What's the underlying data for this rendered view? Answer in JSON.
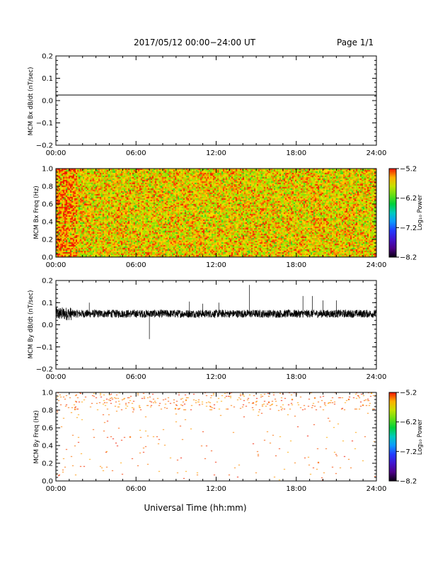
{
  "header": {
    "title": "2017/05/12  00:00−24:00 UT",
    "page": "Page 1/1"
  },
  "xlabel": "Universal Time (hh:mm)",
  "colorbar_label": "Log₁₀ Power",
  "chart_data": [
    {
      "type": "line",
      "ylabel": "MCM Bx dB/dt (nT/sec)",
      "xlim": [
        0,
        24
      ],
      "ylim": [
        -0.2,
        0.2
      ],
      "x_ticks": [
        "00:00",
        "06:00",
        "12:00",
        "18:00",
        "24:00"
      ],
      "y_ticks": [
        "0.2",
        "0.1",
        "0.0",
        "−0.1",
        "−0.2"
      ],
      "series": [
        {
          "x": [
            0,
            24
          ],
          "y": [
            0.025,
            0.025
          ]
        }
      ]
    },
    {
      "type": "heatmap",
      "ylabel": "MCM Bx Freq (Hz)",
      "xlim": [
        0,
        24
      ],
      "ylim": [
        0,
        1.0
      ],
      "x_ticks": [
        "00:00",
        "06:00",
        "12:00",
        "18:00",
        "24:00"
      ],
      "y_ticks": [
        "1.0",
        "0.8",
        "0.6",
        "0.4",
        "0.2",
        "0.0"
      ],
      "colorbar": {
        "min": -8.2,
        "max": -5.2,
        "ticks": [
          "−5.2",
          "−6.2",
          "−7.2",
          "−8.2"
        ]
      },
      "description": "dense noise, log10 power approx -6.3 to -5.2 across all times and frequencies"
    },
    {
      "type": "line",
      "ylabel": "MCM By dB/dt (nT/sec)",
      "xlim": [
        0,
        24
      ],
      "ylim": [
        -0.2,
        0.2
      ],
      "x_ticks": [
        "00:00",
        "06:00",
        "12:00",
        "18:00",
        "24:00"
      ],
      "y_ticks": [
        "0.2",
        "0.1",
        "0.0",
        "−0.1",
        "−0.2"
      ],
      "baseline": 0.05,
      "spikes": [
        {
          "x": 7.0,
          "y": -0.065
        },
        {
          "x": 14.5,
          "y": 0.18
        },
        {
          "x": 2.5,
          "y": 0.1
        },
        {
          "x": 10.0,
          "y": 0.105
        },
        {
          "x": 11.0,
          "y": 0.095
        },
        {
          "x": 12.2,
          "y": 0.1
        },
        {
          "x": 18.5,
          "y": 0.13
        },
        {
          "x": 19.2,
          "y": 0.13
        },
        {
          "x": 20.0,
          "y": 0.11
        },
        {
          "x": 21.0,
          "y": 0.11
        }
      ]
    },
    {
      "type": "heatmap",
      "ylabel": "MCM By Freq (Hz)",
      "xlim": [
        0,
        24
      ],
      "ylim": [
        0,
        1.0
      ],
      "x_ticks": [
        "00:00",
        "06:00",
        "12:00",
        "18:00",
        "24:00"
      ],
      "y_ticks": [
        "1.0",
        "0.8",
        "0.6",
        "0.4",
        "0.2",
        "0.0"
      ],
      "colorbar": {
        "min": -8.2,
        "max": -5.2,
        "ticks": [
          "−5.2",
          "−6.2",
          "−7.2",
          "−8.2"
        ]
      },
      "description": "sparse red pixels near -5.2, concentrated near 0.8-1.0 Hz"
    }
  ]
}
